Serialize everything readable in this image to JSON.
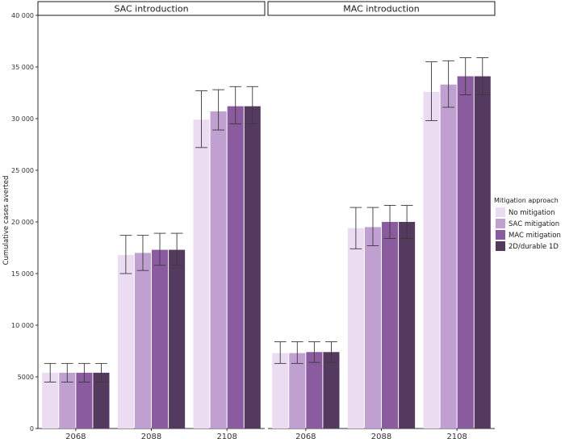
{
  "chart_data": {
    "type": "bar",
    "ylabel": "Cumulative cases averted",
    "ylim": [
      0,
      40000
    ],
    "yticks": [
      0,
      5000,
      10000,
      15000,
      20000,
      25000,
      30000,
      35000,
      40000
    ],
    "ytick_labels": [
      "0",
      "5000",
      "10 000",
      "15 000",
      "20 000",
      "25 000",
      "30 000",
      "35 000",
      "40 000"
    ],
    "categories": [
      "2068",
      "2088",
      "2108"
    ],
    "legend": {
      "title": "Mitigation approach",
      "position": "right",
      "entries": [
        "No mitigation",
        "SAC mitigation",
        "MAC mitigation",
        "2D/durable 1D"
      ]
    },
    "colors": [
      "#ebdcf2",
      "#c0a0d1",
      "#8a5c9f",
      "#553a60"
    ],
    "grid": false,
    "panels": [
      {
        "title": "SAC introduction",
        "series": [
          {
            "name": "No mitigation",
            "values": [
              5400,
              16800,
              29900
            ],
            "lower": [
              4500,
              15000,
              27200
            ],
            "upper": [
              6300,
              18700,
              32700
            ]
          },
          {
            "name": "SAC mitigation",
            "values": [
              5400,
              17000,
              30700
            ],
            "lower": [
              4500,
              15300,
              28900
            ],
            "upper": [
              6300,
              18700,
              32800
            ]
          },
          {
            "name": "MAC mitigation",
            "values": [
              5400,
              17300,
              31200
            ],
            "lower": [
              4500,
              15800,
              29500
            ],
            "upper": [
              6300,
              18900,
              33100
            ]
          },
          {
            "name": "2D/durable 1D",
            "values": [
              5400,
              17300,
              31200
            ],
            "lower": [
              4500,
              15800,
              29500
            ],
            "upper": [
              6300,
              18900,
              33100
            ]
          }
        ]
      },
      {
        "title": "MAC introduction",
        "series": [
          {
            "name": "No mitigation",
            "values": [
              7300,
              19400,
              32600
            ],
            "lower": [
              6300,
              17400,
              29800
            ],
            "upper": [
              8400,
              21400,
              35500
            ]
          },
          {
            "name": "SAC mitigation",
            "values": [
              7300,
              19500,
              33300
            ],
            "lower": [
              6300,
              17700,
              31100
            ],
            "upper": [
              8400,
              21400,
              35600
            ]
          },
          {
            "name": "MAC mitigation",
            "values": [
              7400,
              20000,
              34100
            ],
            "lower": [
              6400,
              18400,
              32300
            ],
            "upper": [
              8400,
              21600,
              35900
            ]
          },
          {
            "name": "2D/durable 1D",
            "values": [
              7400,
              20000,
              34100
            ],
            "lower": [
              6400,
              18400,
              32300
            ],
            "upper": [
              8400,
              21600,
              35900
            ]
          }
        ]
      }
    ]
  }
}
